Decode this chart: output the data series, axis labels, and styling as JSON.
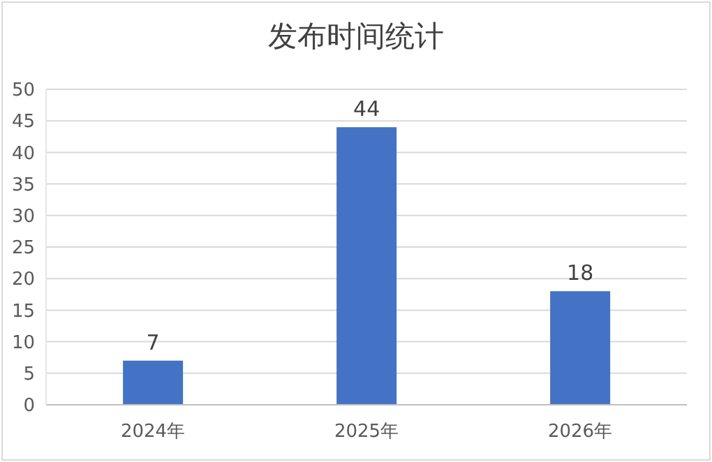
{
  "chart_data": {
    "type": "bar",
    "title": "发布时间统计",
    "categories": [
      "2024年",
      "2025年",
      "2026年"
    ],
    "values": [
      7,
      44,
      18
    ],
    "color": "#4472c4",
    "ylim": [
      0,
      50
    ],
    "yticks": [
      0,
      5,
      10,
      15,
      20,
      25,
      30,
      35,
      40,
      45,
      50
    ],
    "grid": "y",
    "data_labels": true,
    "legend": false
  }
}
